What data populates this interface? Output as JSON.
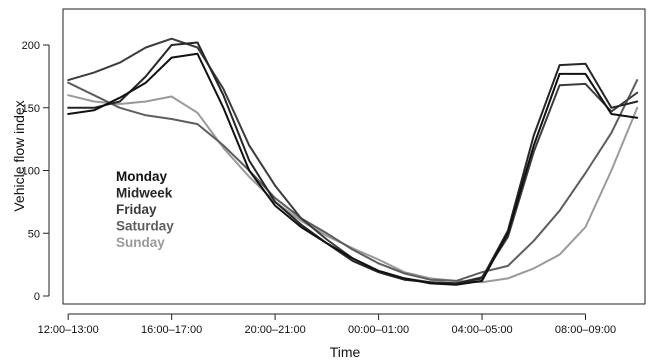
{
  "chart_data": {
    "type": "line",
    "xlabel": "Time",
    "ylabel": "Vehicle flow index",
    "ylim": [
      0,
      200
    ],
    "y_ticks": [
      0,
      50,
      100,
      150,
      200
    ],
    "x_range": [
      -0.2,
      22.3
    ],
    "x_hours": [
      0,
      1,
      2,
      3,
      4,
      5,
      6,
      7,
      8,
      9,
      10,
      11,
      12,
      13,
      14,
      15,
      16,
      17,
      18,
      19,
      20,
      21,
      22
    ],
    "x_tick_positions": [
      0,
      4,
      8,
      12,
      16,
      20
    ],
    "x_tick_labels": [
      "12:00–13:00",
      "16:00–17:00",
      "20:00–21:00",
      "00:00–01:00",
      "04:00–05:00",
      "08:00–09:00"
    ],
    "grid": false,
    "legend_position": "left",
    "series": [
      {
        "name": "Monday",
        "color": "#111111",
        "values": [
          145,
          148,
          158,
          170,
          190,
          193,
          150,
          100,
          72,
          55,
          42,
          30,
          20,
          14,
          10,
          9,
          12,
          50,
          120,
          177,
          177,
          145,
          142
        ]
      },
      {
        "name": "Midweek",
        "color": "#262626",
        "values": [
          150,
          150,
          155,
          175,
          200,
          202,
          160,
          108,
          75,
          57,
          42,
          28,
          19,
          13,
          11,
          10,
          14,
          52,
          128,
          184,
          185,
          150,
          155
        ]
      },
      {
        "name": "Friday",
        "color": "#3c3c3c",
        "values": [
          172,
          178,
          186,
          198,
          205,
          198,
          165,
          120,
          88,
          62,
          45,
          30,
          20,
          14,
          11,
          10,
          15,
          47,
          115,
          168,
          169,
          147,
          162
        ]
      },
      {
        "name": "Saturday",
        "color": "#5e5e5e",
        "values": [
          170,
          160,
          150,
          144,
          141,
          137,
          120,
          100,
          78,
          62,
          50,
          37,
          26,
          18,
          13,
          12,
          19,
          24,
          44,
          68,
          98,
          130,
          172
        ]
      },
      {
        "name": "Sunday",
        "color": "#9a9a9a",
        "values": [
          160,
          155,
          153,
          155,
          159,
          146,
          118,
          95,
          75,
          60,
          48,
          38,
          29,
          19,
          14,
          12,
          11,
          14,
          22,
          33,
          55,
          100,
          150
        ]
      }
    ]
  }
}
